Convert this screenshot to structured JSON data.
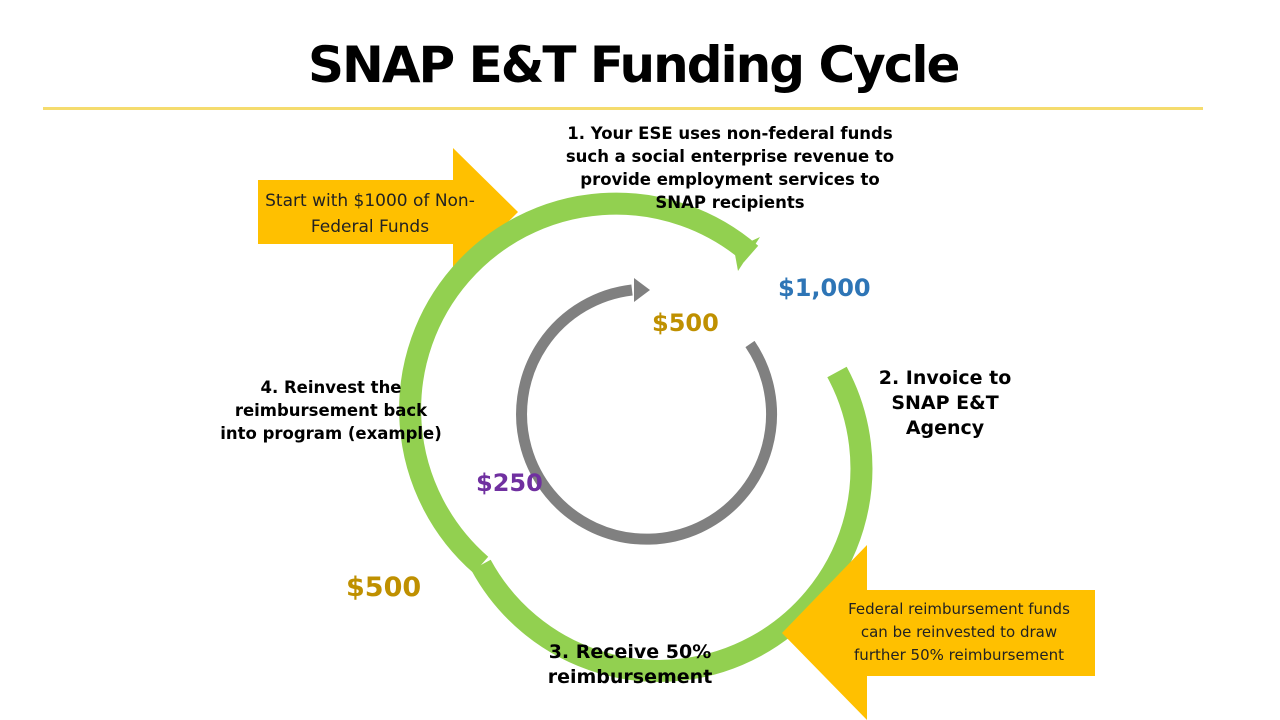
{
  "title": "SNAP E&T Funding Cycle",
  "steps": {
    "step1": "1. Your ESE uses non-federal funds such a social enterprise revenue to provide employment services to SNAP recipients",
    "step2": "2. Invoice to SNAP E&T Agency",
    "step3": "3. Receive 50% reimbursement",
    "step4": "4. Reinvest the reimbursement back into program (example)"
  },
  "callouts": {
    "start": "Start with $1000 of Non- Federal Funds",
    "federal": "Federal reimbursement funds can be reinvested to draw further 50% reimbursement"
  },
  "amounts": {
    "outer_start": "$1,000",
    "inner_start": "$500",
    "inner_mid": "$250",
    "outer_bottom": "$500"
  },
  "colors": {
    "outer_ring": "#92d050",
    "inner_ring": "#808080",
    "callout_arrow": "#ffc000",
    "rule": "#f5dc6e",
    "amount_blue": "#2e75b6",
    "amount_gold": "#bf9000",
    "amount_purple": "#7030a0"
  }
}
